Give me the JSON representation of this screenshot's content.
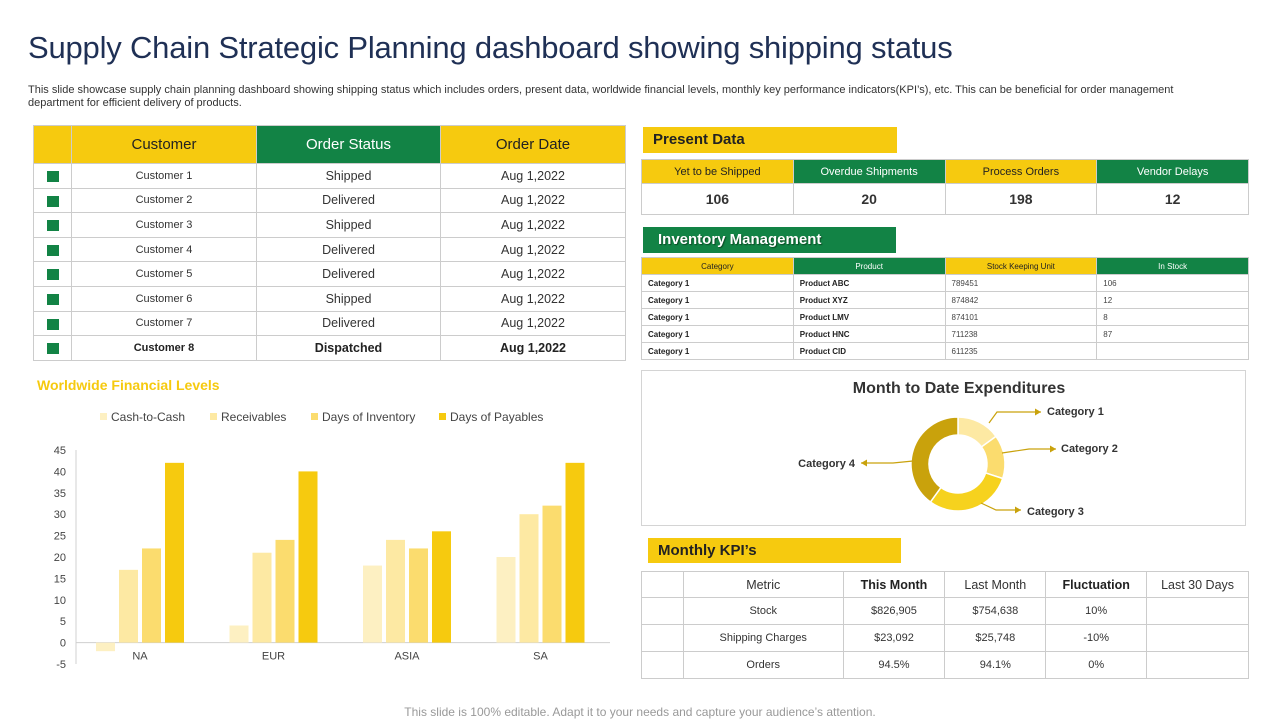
{
  "page": {
    "title": "Supply Chain Strategic Planning dashboard showing shipping status",
    "subtitle": "This slide showcase supply chain planning dashboard showing shipping status which includes orders, present data, worldwide financial levels, monthly key performance indicators(KPI’s), etc. This can be beneficial for order management department for efficient delivery of products.",
    "footer": "This slide is 100% editable. Adapt it to your needs and capture your audience’s attention."
  },
  "colors": {
    "yellow": "#f6ca0f",
    "green": "#128345",
    "navy": "#1f3055"
  },
  "orders": {
    "headers": [
      "Customer",
      "Order Status",
      "Order Date"
    ],
    "rows": [
      {
        "customer": "Customer 1",
        "status": "Shipped",
        "date": "Aug 1,2022"
      },
      {
        "customer": "Customer 2",
        "status": "Delivered",
        "date": "Aug 1,2022"
      },
      {
        "customer": "Customer 3",
        "status": "Shipped",
        "date": "Aug 1,2022"
      },
      {
        "customer": "Customer 4",
        "status": "Delivered",
        "date": "Aug 1,2022"
      },
      {
        "customer": "Customer 5",
        "status": "Delivered",
        "date": "Aug 1,2022"
      },
      {
        "customer": "Customer 6",
        "status": "Shipped",
        "date": "Aug 1,2022"
      },
      {
        "customer": "Customer 7",
        "status": "Delivered",
        "date": "Aug 1,2022"
      },
      {
        "customer": "Customer 8",
        "status": "Dispatched",
        "date": "Aug 1,2022"
      }
    ]
  },
  "present_data": {
    "label": "Present Data",
    "headers": [
      "Yet to be Shipped",
      "Overdue Shipments",
      "Process Orders",
      "Vendor Delays"
    ],
    "values": [
      "106",
      "20",
      "198",
      "12"
    ]
  },
  "inventory": {
    "label": "Inventory Management",
    "headers": [
      "Category",
      "Product",
      "Stock Keeping Unit",
      "In Stock"
    ],
    "rows": [
      {
        "category": "Category 1",
        "product": "Product ABC",
        "sku": "789451",
        "stock": "106"
      },
      {
        "category": "Category 1",
        "product": "Product XYZ",
        "sku": "874842",
        "stock": "12"
      },
      {
        "category": "Category 1",
        "product": "Product LMV",
        "sku": "874101",
        "stock": "8"
      },
      {
        "category": "Category 1",
        "product": "Product HNC",
        "sku": "711238",
        "stock": "87"
      },
      {
        "category": "Category 1",
        "product": "Product CID",
        "sku": "611235",
        "stock": ""
      }
    ]
  },
  "kpis": {
    "label": "Monthly KPI’s",
    "headers": [
      "Metric",
      "This Month",
      "Last Month",
      "Fluctuation",
      "Last 30 Days"
    ],
    "rows": [
      {
        "metric": "Stock",
        "this_month": "$826,905",
        "last_month": "$754,638",
        "fluctuation": "10%",
        "last30": ""
      },
      {
        "metric": "Shipping Charges",
        "this_month": "$23,092",
        "last_month": "$25,748",
        "fluctuation": "-10%",
        "last30": ""
      },
      {
        "metric": "Orders",
        "this_month": "94.5%",
        "last_month": "94.1%",
        "fluctuation": "0%",
        "last30": ""
      }
    ]
  },
  "chart_data": [
    {
      "type": "bar",
      "title": "Worldwide Financial Levels",
      "categories": [
        "NA",
        "EUR",
        "ASIA",
        "SA"
      ],
      "series": [
        {
          "name": "Cash-to-Cash",
          "color": "#fdf0c2",
          "values": [
            -2,
            4,
            18,
            20
          ]
        },
        {
          "name": "Receivables",
          "color": "#fde9a3",
          "values": [
            17,
            21,
            24,
            30
          ]
        },
        {
          "name": "Days of Inventory",
          "color": "#fbdc6e",
          "values": [
            22,
            24,
            22,
            32
          ]
        },
        {
          "name": "Days of Payables",
          "color": "#f6ca0f",
          "values": [
            42,
            40,
            26,
            42
          ]
        }
      ],
      "ylim": [
        -5,
        45
      ],
      "yticks": [
        45,
        40,
        35,
        30,
        25,
        20,
        15,
        10,
        5,
        0,
        -5
      ],
      "legend": "top"
    },
    {
      "type": "pie",
      "title": "Month to Date Expenditures",
      "labels": [
        "Category 1",
        "Category 2",
        "Category 3",
        "Category 4"
      ],
      "values": [
        15,
        15,
        30,
        40
      ],
      "colors": [
        "#fde9a3",
        "#fbdc6e",
        "#f6d21e",
        "#c9a20c"
      ]
    }
  ]
}
